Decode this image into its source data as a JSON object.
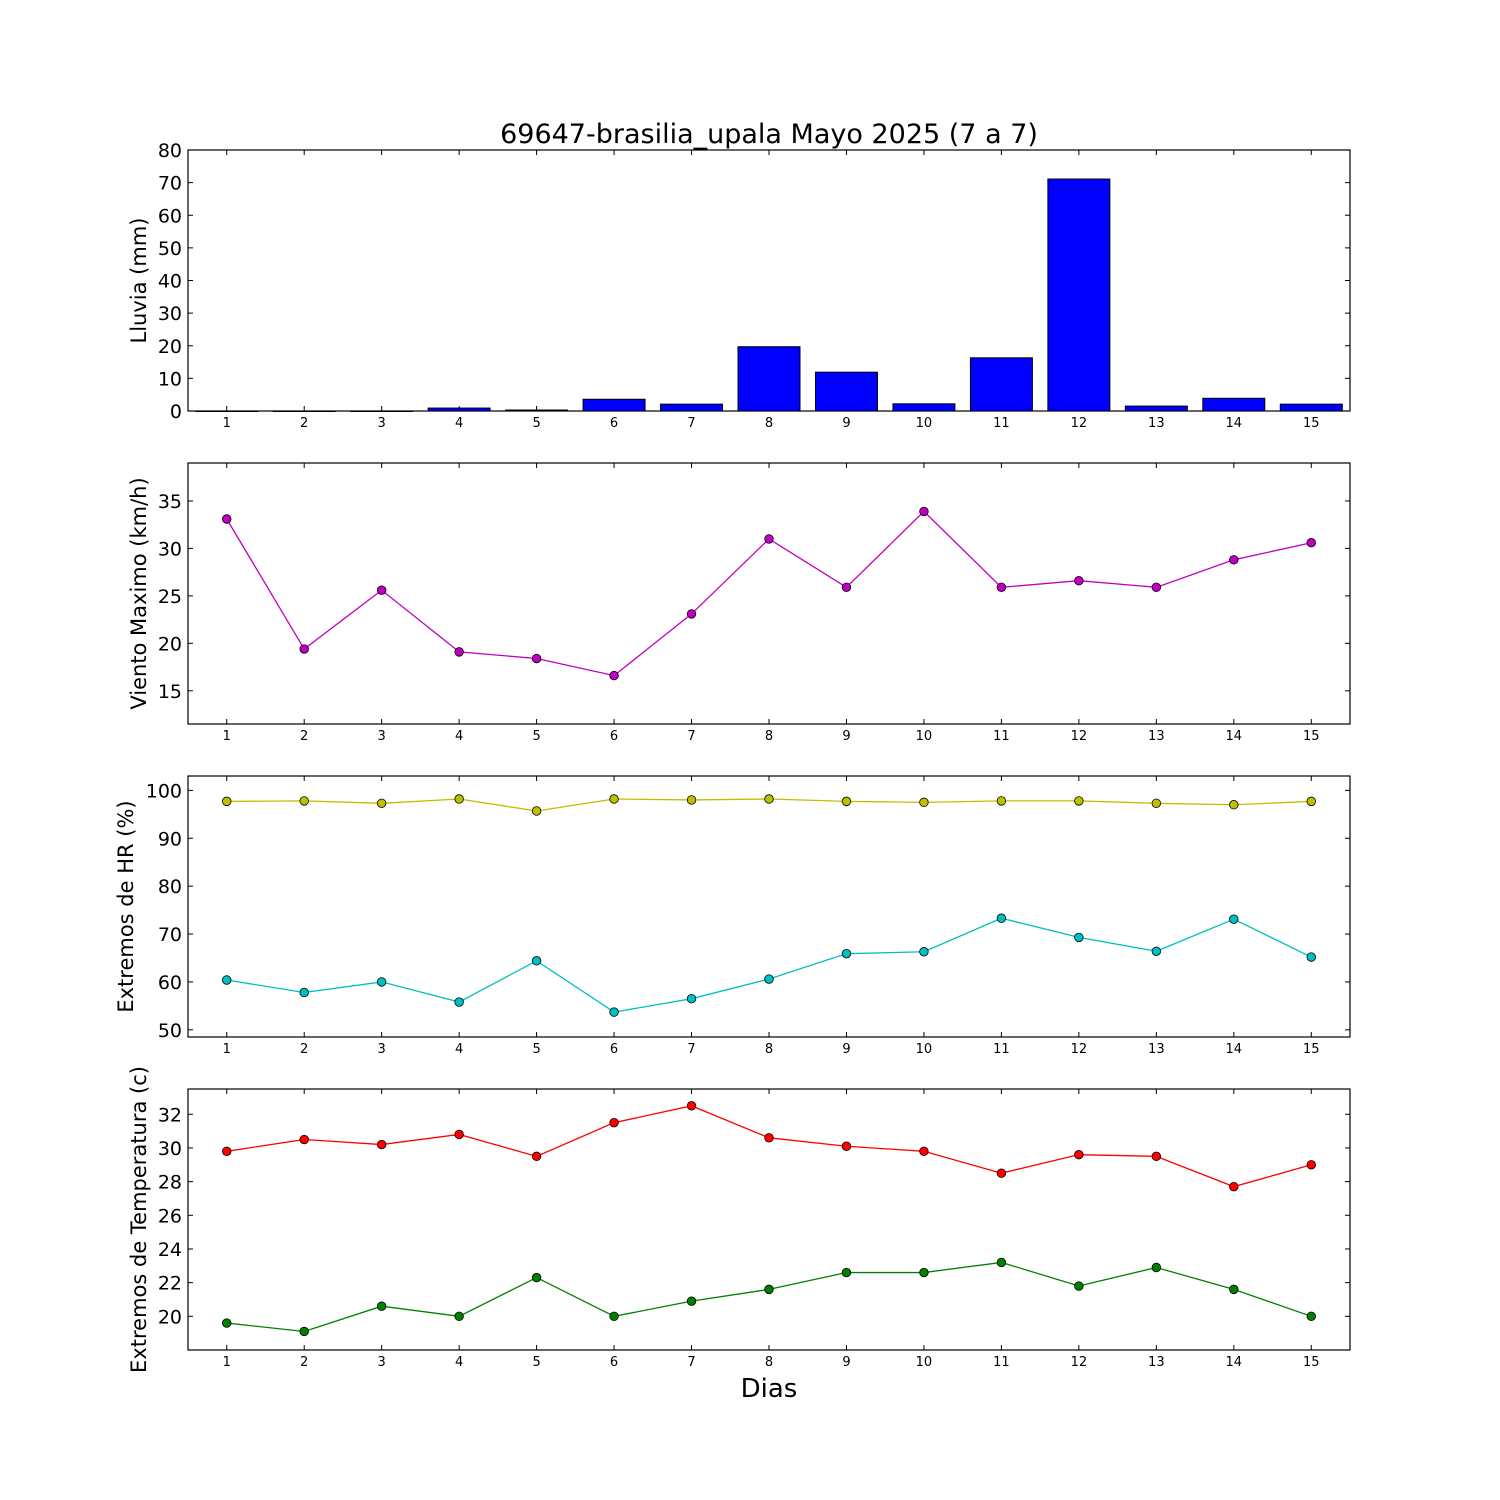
{
  "figure": {
    "title": "69647-brasilia_upala Mayo 2025  (7 a 7)",
    "xlabel": "Dias"
  },
  "chart_data": [
    {
      "type": "bar",
      "ylabel": "Lluvia (mm)",
      "categories": [
        1,
        2,
        3,
        4,
        5,
        6,
        7,
        8,
        9,
        10,
        11,
        12,
        13,
        14,
        15
      ],
      "ylim": [
        0,
        80
      ],
      "yticks": [
        0,
        10,
        20,
        30,
        40,
        50,
        60,
        70,
        80
      ],
      "color": "#0000ff",
      "values": [
        0,
        0,
        0,
        0.9,
        0.3,
        3.6,
        2.1,
        19.7,
        11.9,
        2.2,
        16.3,
        71.1,
        1.5,
        3.9,
        2.1
      ]
    },
    {
      "type": "line",
      "ylabel": "Viento Maximo (km/h)",
      "x": [
        1,
        2,
        3,
        4,
        5,
        6,
        7,
        8,
        9,
        10,
        11,
        12,
        13,
        14,
        15
      ],
      "ylim": [
        11.5,
        39
      ],
      "yticks": [
        15,
        20,
        25,
        30,
        35
      ],
      "series": [
        {
          "color": "#bf00bf",
          "values": [
            33.1,
            19.4,
            25.6,
            19.1,
            18.4,
            16.6,
            23.1,
            31.0,
            25.9,
            33.9,
            25.9,
            26.6,
            25.9,
            28.8,
            30.6
          ]
        }
      ]
    },
    {
      "type": "line",
      "ylabel": "Extremos de HR (%)",
      "x": [
        1,
        2,
        3,
        4,
        5,
        6,
        7,
        8,
        9,
        10,
        11,
        12,
        13,
        14,
        15
      ],
      "ylim": [
        48.5,
        103
      ],
      "yticks": [
        50,
        60,
        70,
        80,
        90,
        100
      ],
      "series": [
        {
          "color": "#bfbf00",
          "values": [
            97.7,
            97.8,
            97.3,
            98.2,
            95.7,
            98.2,
            98.0,
            98.2,
            97.7,
            97.5,
            97.8,
            97.8,
            97.3,
            97.0,
            97.7
          ]
        },
        {
          "color": "#00bfbf",
          "values": [
            60.4,
            57.8,
            60.0,
            55.8,
            64.4,
            53.7,
            56.5,
            60.6,
            65.9,
            66.3,
            73.3,
            69.3,
            66.4,
            73.1,
            65.2
          ]
        }
      ]
    },
    {
      "type": "line",
      "ylabel": "Extremos de Temperatura (c)",
      "x": [
        1,
        2,
        3,
        4,
        5,
        6,
        7,
        8,
        9,
        10,
        11,
        12,
        13,
        14,
        15
      ],
      "ylim": [
        18,
        33.5
      ],
      "yticks": [
        20,
        22,
        24,
        26,
        28,
        30,
        32
      ],
      "series": [
        {
          "color": "#ff0000",
          "values": [
            29.8,
            30.5,
            30.2,
            30.8,
            29.5,
            31.5,
            32.5,
            30.6,
            30.1,
            29.8,
            28.5,
            29.6,
            29.5,
            27.7,
            29.0
          ]
        },
        {
          "color": "#008000",
          "values": [
            19.6,
            19.1,
            20.6,
            20.0,
            22.3,
            20.0,
            20.9,
            21.6,
            22.6,
            22.6,
            23.2,
            21.8,
            22.9,
            21.6,
            20.0
          ]
        }
      ]
    }
  ]
}
